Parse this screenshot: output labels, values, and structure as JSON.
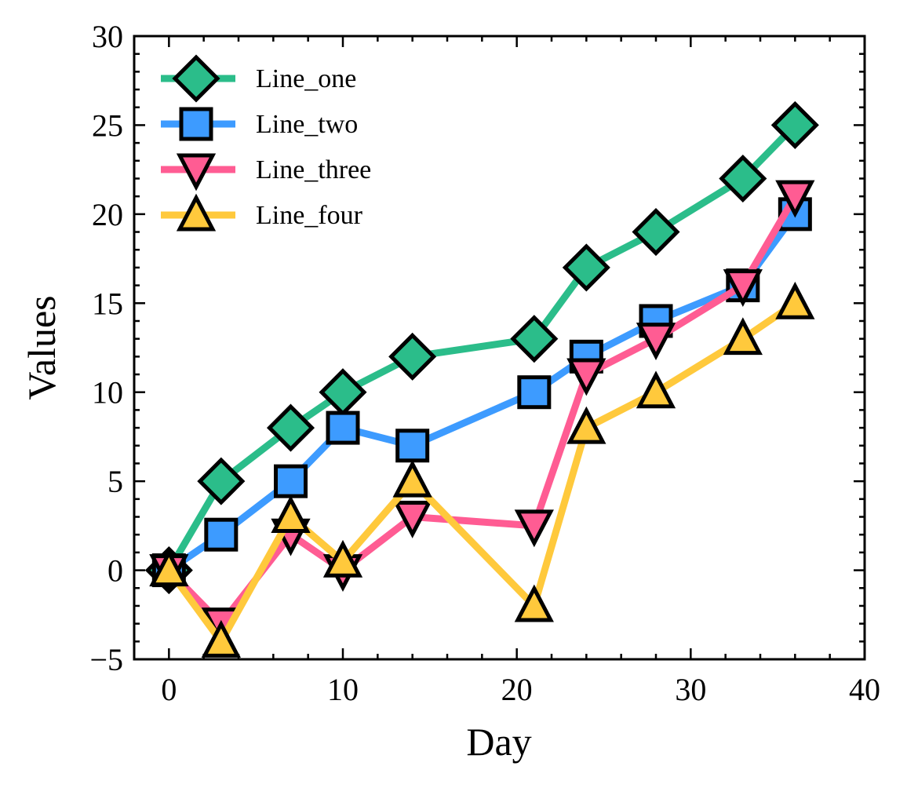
{
  "chart_data": {
    "type": "line",
    "xlabel": "Day",
    "ylabel": "Values",
    "xlim": [
      -2,
      40
    ],
    "ylim": [
      -5,
      30
    ],
    "x_major_ticks": [
      0,
      10,
      20,
      30,
      40
    ],
    "y_major_ticks": [
      -5,
      0,
      5,
      10,
      15,
      20,
      25,
      30
    ],
    "x_tick_labels": [
      "0",
      "10",
      "20",
      "30",
      "40"
    ],
    "y_tick_labels": [
      "−5",
      "0",
      "5",
      "10",
      "15",
      "20",
      "25",
      "30"
    ],
    "grid": false,
    "legend_position": "top-left",
    "x": [
      0,
      3,
      7,
      10,
      14,
      21,
      24,
      28,
      33,
      36
    ],
    "series": [
      {
        "name": "Line_one",
        "marker": "diamond",
        "color": "#2BBD8A",
        "values": [
          0,
          5,
          8,
          10,
          12,
          13,
          17,
          19,
          22,
          25
        ]
      },
      {
        "name": "Line_two",
        "marker": "square",
        "color": "#3D9BFF",
        "values": [
          0,
          2,
          5,
          8,
          7,
          10,
          12,
          14,
          16,
          20
        ]
      },
      {
        "name": "Line_three",
        "marker": "triangle-down",
        "color": "#FF5C93",
        "values": [
          0,
          -3,
          2,
          0,
          3,
          2.5,
          11,
          13,
          16,
          21
        ]
      },
      {
        "name": "Line_four",
        "marker": "triangle-up",
        "color": "#FFC93C",
        "values": [
          0,
          -4,
          3,
          0.5,
          5,
          -2,
          8,
          10,
          13,
          15
        ]
      }
    ]
  }
}
